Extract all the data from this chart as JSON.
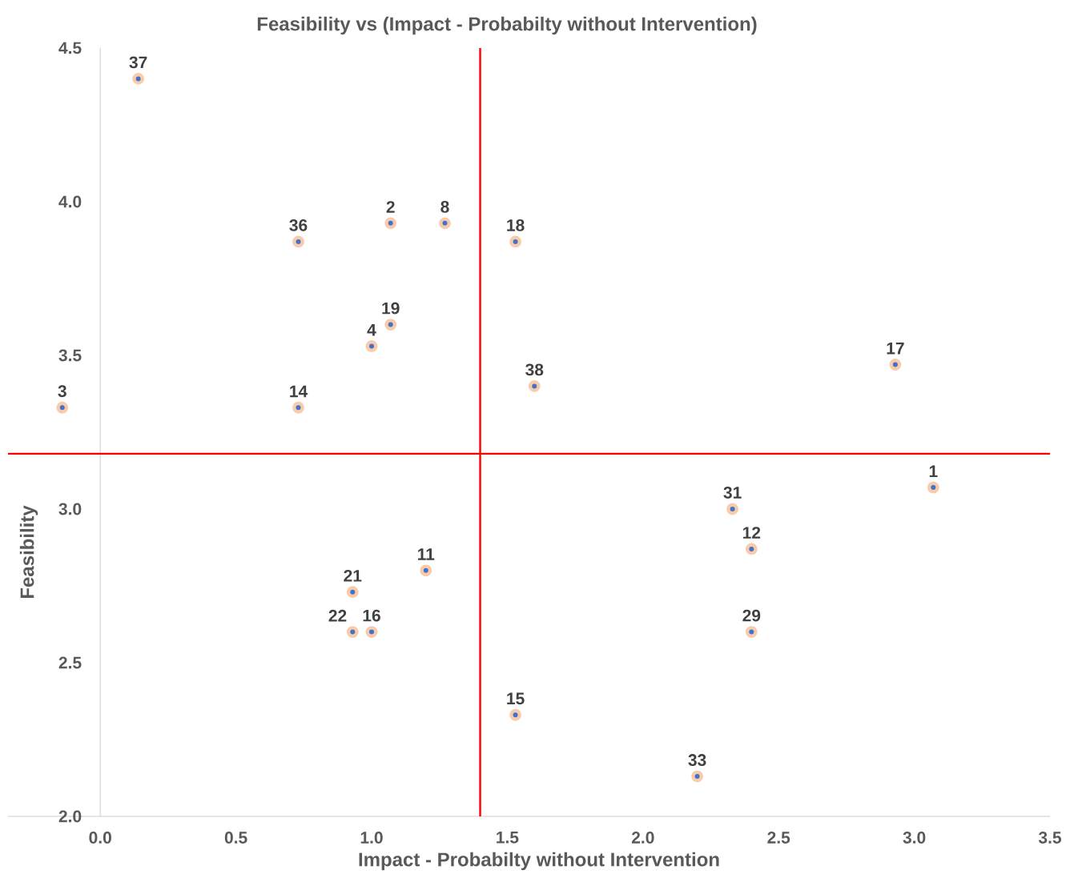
{
  "chart_data": {
    "type": "scatter",
    "title": "Feasibility vs (Impact - Probabilty without Intervention)",
    "xlabel": "Impact - Probabilty without Intervention",
    "ylabel": "Feasibility",
    "x": [
      0.14,
      0.73,
      1.07,
      1.27,
      1.53,
      1.07,
      1.0,
      1.6,
      2.93,
      -0.14,
      0.73,
      3.07,
      2.33,
      2.4,
      1.2,
      0.93,
      0.93,
      1.0,
      2.4,
      1.53,
      2.2
    ],
    "values": [
      4.4,
      3.87,
      3.93,
      3.93,
      3.87,
      3.6,
      3.53,
      3.4,
      3.47,
      3.33,
      3.33,
      3.07,
      3.0,
      2.87,
      2.8,
      2.73,
      2.6,
      2.6,
      2.6,
      2.33,
      2.13
    ],
    "annotations": [
      {
        "text": "37",
        "x": 0.14,
        "y": 4.4
      },
      {
        "text": "36",
        "x": 0.73,
        "y": 3.87
      },
      {
        "text": "2",
        "x": 1.07,
        "y": 3.93
      },
      {
        "text": "8",
        "x": 1.27,
        "y": 3.93
      },
      {
        "text": "18",
        "x": 1.53,
        "y": 3.87
      },
      {
        "text": "19",
        "x": 1.07,
        "y": 3.6
      },
      {
        "text": "4",
        "x": 1.0,
        "y": 3.53
      },
      {
        "text": "38",
        "x": 1.6,
        "y": 3.4
      },
      {
        "text": "17",
        "x": 2.93,
        "y": 3.47
      },
      {
        "text": "3",
        "x": -0.14,
        "y": 3.33
      },
      {
        "text": "14",
        "x": 0.73,
        "y": 3.33
      },
      {
        "text": "1",
        "x": 3.07,
        "y": 3.07
      },
      {
        "text": "31",
        "x": 2.33,
        "y": 3.0
      },
      {
        "text": "12",
        "x": 2.4,
        "y": 2.87
      },
      {
        "text": "11",
        "x": 1.2,
        "y": 2.8
      },
      {
        "text": "21",
        "x": 0.93,
        "y": 2.73
      },
      {
        "text": "22",
        "x": 0.93,
        "y": 2.6
      },
      {
        "text": "16",
        "x": 1.0,
        "y": 2.6
      },
      {
        "text": "29",
        "x": 2.4,
        "y": 2.6
      },
      {
        "text": "15",
        "x": 1.53,
        "y": 2.33
      },
      {
        "text": "33",
        "x": 2.2,
        "y": 2.13
      }
    ],
    "color": "#4472c4",
    "marker": "circle",
    "grid": false,
    "xlim": [
      -0.34,
      3.5
    ],
    "xticks": [
      {
        "value": 0,
        "label": "0.0"
      },
      {
        "value": 0.5,
        "label": "0.5"
      },
      {
        "value": 1,
        "label": "1.0"
      },
      {
        "value": 1.5,
        "label": "1.5"
      },
      {
        "value": 2,
        "label": "2.0"
      },
      {
        "value": 2.5,
        "label": "2.5"
      },
      {
        "value": 3,
        "label": "3.0"
      },
      {
        "value": 3.5,
        "label": "3.5"
      }
    ],
    "ylim": [
      2.0,
      4.5
    ],
    "yticks": [
      {
        "value": 2,
        "label": "2.0"
      },
      {
        "value": 2.5,
        "label": "2.5"
      },
      {
        "value": 3,
        "label": "3.0"
      },
      {
        "value": 3.5,
        "label": "3.5"
      },
      {
        "value": 4,
        "label": "4.0"
      },
      {
        "value": 4.5,
        "label": "4.5"
      }
    ],
    "ref_lines": [
      {
        "axis": "x",
        "value": 1.4,
        "color": "#ff0000"
      },
      {
        "axis": "y",
        "value": 3.18,
        "color": "#ff0000"
      }
    ]
  }
}
